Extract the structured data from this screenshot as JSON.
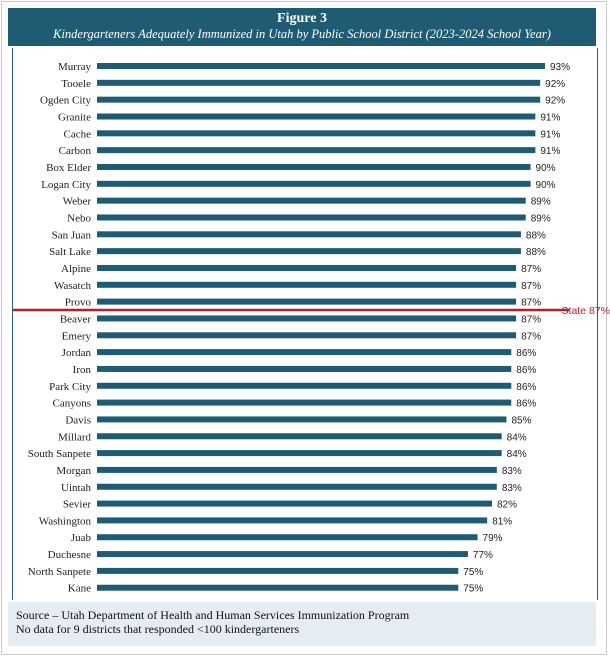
{
  "header": {
    "figure_label": "Figure 3",
    "subtitle": "Kindergarteners Adequately Immunized in Utah by Public School District (2023-2024 School Year)"
  },
  "footer": {
    "source": "Source – Utah Department of Health and Human Services Immunization Program",
    "note": "No data for 9 districts that responded <100 kindergarteners"
  },
  "colors": {
    "bar": "#1f5b73",
    "state_line": "#b3202a",
    "header_bg": "#1f5b73",
    "footer_bg": "#e6edf2"
  },
  "chart_data": {
    "type": "bar",
    "orientation": "horizontal",
    "title": "Figure 3",
    "subtitle": "Kindergarteners Adequately Immunized in Utah by Public School District (2023-2024 School Year)",
    "categories": [
      "Murray",
      "Tooele",
      "Ogden City",
      "Granite",
      "Cache",
      "Carbon",
      "Box Elder",
      "Logan City",
      "Weber",
      "Nebo",
      "San Juan",
      "Salt Lake",
      "Alpine",
      "Wasatch",
      "Provo",
      "Beaver",
      "Emery",
      "Jordan",
      "Iron",
      "Park City",
      "Canyons",
      "Davis",
      "Millard",
      "South Sanpete",
      "Morgan",
      "Uintah",
      "Sevier",
      "Washington",
      "Juab",
      "Duchesne",
      "North Sanpete",
      "Kane"
    ],
    "values": [
      93,
      92,
      92,
      91,
      91,
      91,
      90,
      90,
      89,
      89,
      88,
      88,
      87,
      87,
      87,
      87,
      87,
      86,
      86,
      86,
      86,
      85,
      84,
      84,
      83,
      83,
      82,
      81,
      79,
      77,
      75,
      75
    ],
    "value_labels": [
      "93%",
      "92%",
      "92%",
      "91%",
      "91%",
      "91%",
      "90%",
      "90%",
      "89%",
      "89%",
      "88%",
      "88%",
      "87%",
      "87%",
      "87%",
      "87%",
      "87%",
      "86%",
      "86%",
      "86%",
      "86%",
      "85%",
      "84%",
      "84%",
      "83%",
      "83%",
      "82%",
      "81%",
      "79%",
      "77%",
      "75%",
      "75%"
    ],
    "xlim": [
      0,
      93
    ],
    "reference_line": {
      "label": "State 87%",
      "value": 87
    },
    "grid": false,
    "legend": "none"
  }
}
